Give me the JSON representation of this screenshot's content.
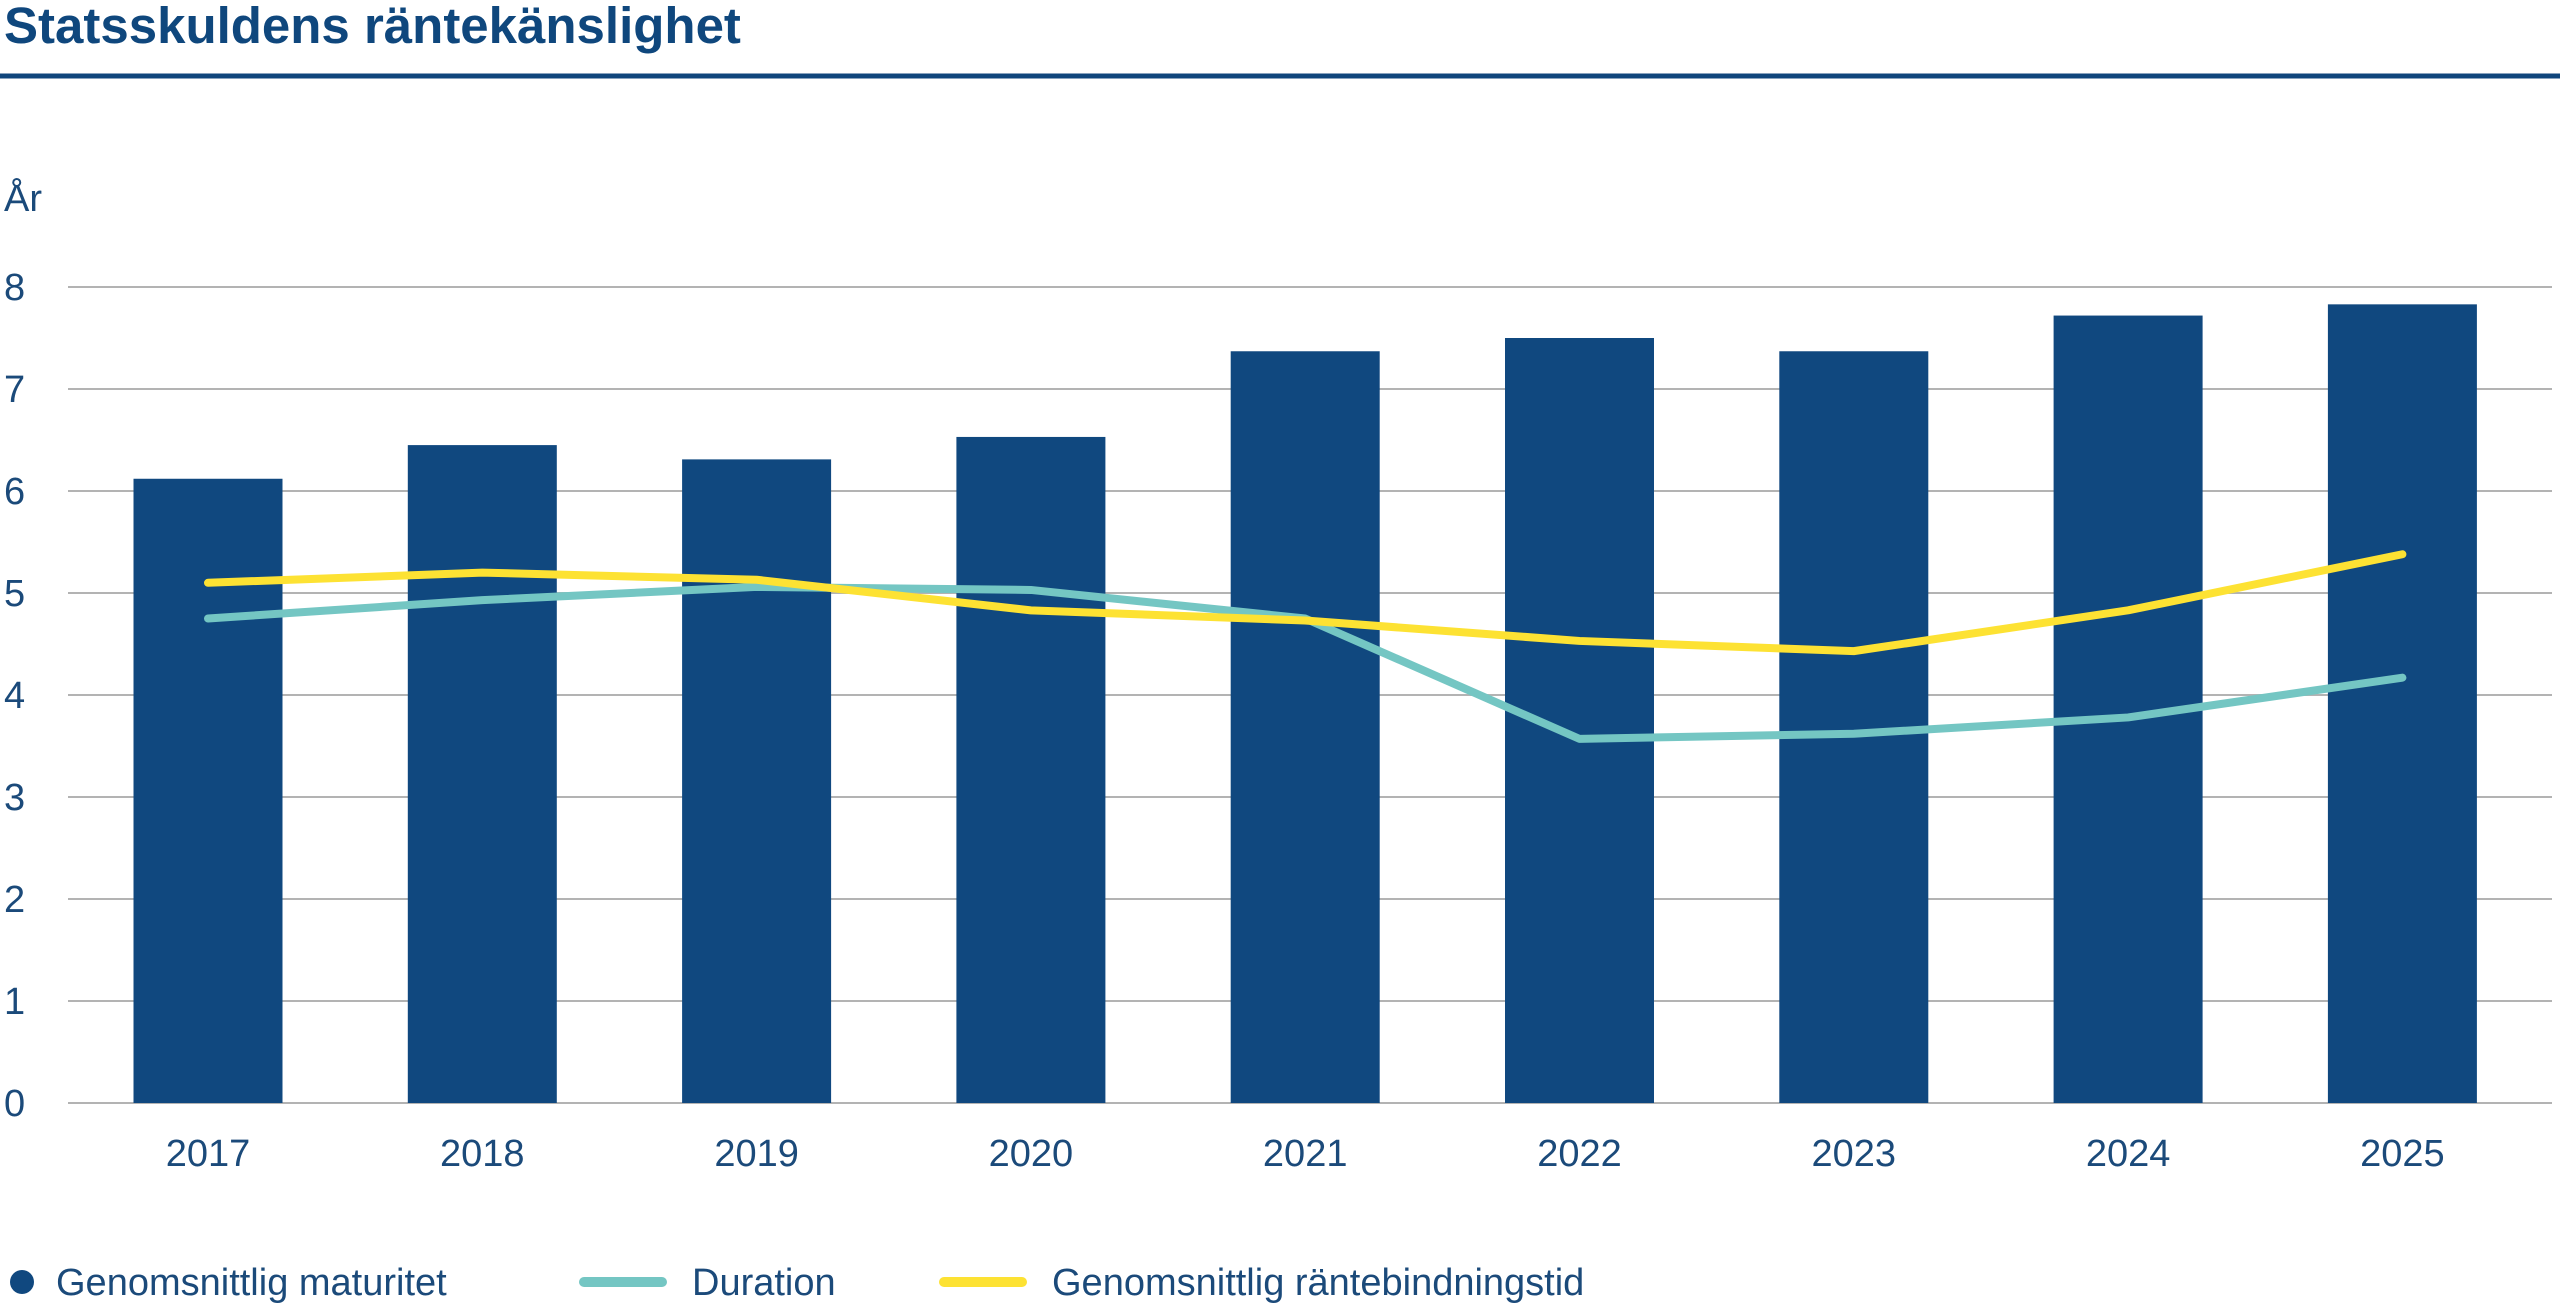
{
  "colors": {
    "title": "#0f477d",
    "text": "#1b4a7a",
    "rule": "#10467c",
    "grid": "#b3b3b3",
    "bar": "#10487f",
    "duration": "#74c6c3",
    "rantebindningstid": "#fde233"
  },
  "chart_data": {
    "type": "bar",
    "title": "Statsskuldens räntekänslighet",
    "ylabel": "År",
    "xlabel": "",
    "ylim": [
      0,
      8
    ],
    "yticks": [
      "0",
      "1",
      "2",
      "3",
      "4",
      "5",
      "6",
      "7",
      "8"
    ],
    "grid": true,
    "legend_position": "bottom",
    "categories": [
      "2017",
      "2018",
      "2019",
      "2020",
      "2021",
      "2022",
      "2023",
      "2024",
      "2025"
    ],
    "series": [
      {
        "name": "Genomsnittlig maturitet",
        "type": "bar",
        "values": [
          6.12,
          6.45,
          6.31,
          6.53,
          7.37,
          7.5,
          7.37,
          7.72,
          7.83
        ]
      },
      {
        "name": "Duration",
        "type": "line",
        "values": [
          4.75,
          4.93,
          5.06,
          5.03,
          4.75,
          3.57,
          3.62,
          3.78,
          4.17
        ]
      },
      {
        "name": "Genomsnittlig räntebindningstid",
        "type": "line",
        "values": [
          5.1,
          5.2,
          5.13,
          4.83,
          4.73,
          4.53,
          4.43,
          4.83,
          5.38
        ]
      }
    ]
  }
}
